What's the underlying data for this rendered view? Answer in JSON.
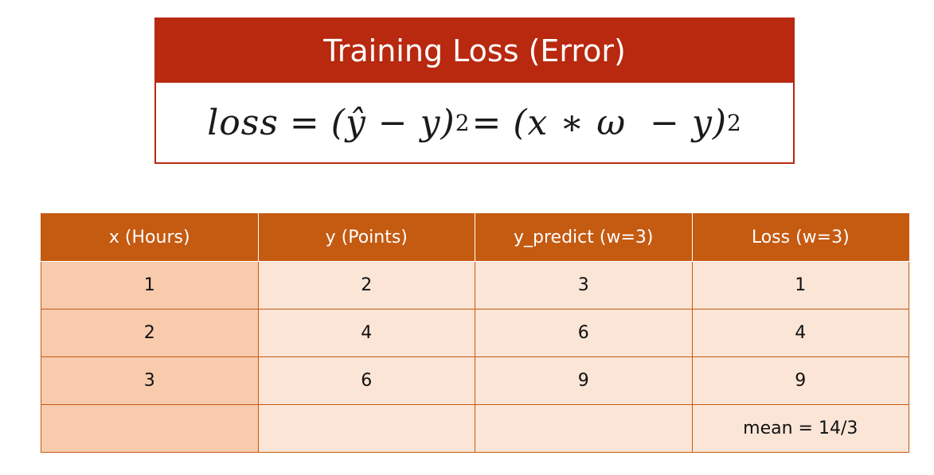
{
  "title": "Training Loss (Error)",
  "formula": {
    "lhs": "loss",
    "eq1": "=",
    "part1": "(ŷ − y)",
    "exp1": "2",
    "eq2": "=",
    "part2": "(x ∗ ω  − y)",
    "exp2": "2"
  },
  "table": {
    "headers": [
      "x (Hours)",
      "y (Points)",
      "y_predict  (w=3)",
      "Loss (w=3)"
    ],
    "rows": [
      [
        "1",
        "2",
        "3",
        "1"
      ],
      [
        "2",
        "4",
        "6",
        "4"
      ],
      [
        "3",
        "6",
        "9",
        "9"
      ],
      [
        "",
        "",
        "",
        "mean = 14/3"
      ]
    ]
  },
  "colors": {
    "title_bar": "#b8290f",
    "header": "#c55a11",
    "cell": "#fbe5d6",
    "first_col": "#f8cbad"
  }
}
